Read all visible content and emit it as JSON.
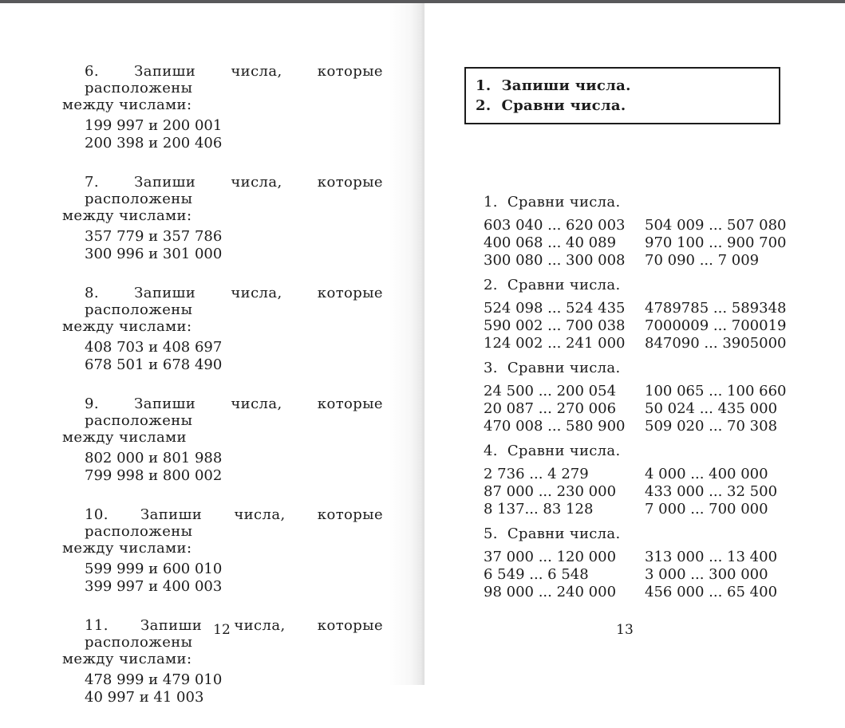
{
  "colors": {
    "top_bar": "#59595b",
    "page_background": "#ffffff",
    "text": "#1c1c1c"
  },
  "left_page": {
    "page_number": "12",
    "exercises": [
      {
        "line1": "6. Запиши числа, которые расположены",
        "line2": "между числами:",
        "pairs": [
          "199 997 и 200 001",
          "200 398 и 200 406"
        ]
      },
      {
        "line1": "7. Запиши числа, которые расположены",
        "line2": "между числами:",
        "pairs": [
          "357 779 и 357 786",
          "300 996 и 301 000"
        ]
      },
      {
        "line1": "8. Запиши числа, которые расположены",
        "line2": "между числами:",
        "pairs": [
          "408 703 и 408 697",
          "678 501 и 678 490"
        ]
      },
      {
        "line1": "9. Запиши числа, которые расположены",
        "line2": "между числами",
        "pairs": [
          "802 000 и 801 988",
          "799 998 и 800 002"
        ]
      },
      {
        "line1": "10. Запиши числа, которые расположены",
        "line2": "между числами:",
        "pairs": [
          "599 999 и 600 010",
          "399 997 и 400 003"
        ]
      },
      {
        "line1": "11. Запиши числа, которые расположены",
        "line2": "между числами:",
        "pairs": [
          "478 999 и 479 010",
          "40 997 и 41 003"
        ]
      }
    ]
  },
  "right_page": {
    "page_number": "13",
    "instruction_box": [
      "1.  Запиши числа.",
      "2.  Сравни числа."
    ],
    "exercises": [
      {
        "title": "1.  Сравни числа.",
        "rows": [
          [
            "603 040 ... 620 003",
            "504 009 ... 507 080"
          ],
          [
            "400 068 ... 40 089",
            "970 100 ... 900 700"
          ],
          [
            "300 080 ... 300 008",
            "70 090 ... 7 009"
          ]
        ]
      },
      {
        "title": "2.  Сравни числа.",
        "rows": [
          [
            "524 098 ... 524 435",
            "4789785 ... 589348"
          ],
          [
            "590 002 ... 700 038",
            "7000009 ... 700019"
          ],
          [
            "124 002 ... 241 000",
            "847090 ... 3905000"
          ]
        ]
      },
      {
        "title": "3.  Сравни числа.",
        "rows": [
          [
            "24 500 ... 200 054",
            "100 065 ... 100 660"
          ],
          [
            "20 087 ... 270 006",
            "50 024 ... 435 000"
          ],
          [
            "470 008 ... 580 900",
            "509 020 ... 70 308"
          ]
        ]
      },
      {
        "title": "4.  Сравни числа.",
        "rows": [
          [
            "2 736 ... 4 279",
            "4 000 ... 400 000"
          ],
          [
            "87 000 ... 230 000",
            "433 000 ... 32 500"
          ],
          [
            "8 137... 83 128",
            "7 000 ... 700 000"
          ]
        ]
      },
      {
        "title": "5.  Сравни числа.",
        "rows": [
          [
            "37 000 ... 120 000",
            "313 000 ... 13 400"
          ],
          [
            "6 549 ... 6 548",
            "3 000 ... 300 000"
          ],
          [
            "98 000 ... 240 000",
            "456 000 ... 65 400"
          ]
        ]
      }
    ]
  }
}
